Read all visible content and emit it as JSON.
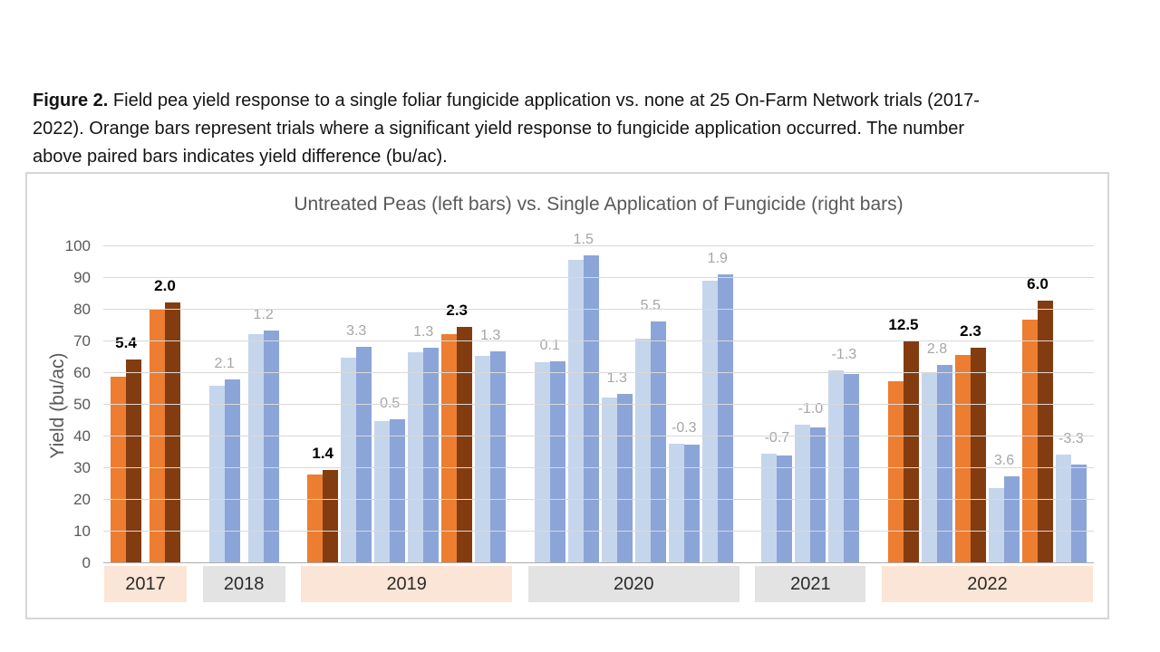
{
  "caption": {
    "prefix": "Figure 2.",
    "lines": [
      " Field pea yield response to a single foliar fungicide application vs. none at 25 On-Farm Network trials (2017-",
      "2022). Orange bars represent trials where a significant yield response to fungicide application occurred. The number",
      "above paired bars indicates yield difference (bu/ac)."
    ]
  },
  "chart_data": {
    "type": "bar",
    "title": "Untreated Peas (left bars) vs. Single Application of Fungicide (right bars)",
    "ylabel": "Yield (bu/ac)",
    "ylim": [
      0,
      100
    ],
    "ytick_step": 10,
    "yticks": [
      0,
      10,
      20,
      30,
      40,
      50,
      60,
      70,
      80,
      90,
      100
    ],
    "grid": true,
    "legend": "none",
    "series_meaning": {
      "left_bar": "Untreated Peas",
      "right_bar": "Single Application of Fungicide"
    },
    "units": "bu/ac",
    "colors": {
      "untreated_significant": "#ED7D31",
      "treated_significant": "#833C10",
      "untreated_nonsignificant": "#C5D5EC",
      "treated_nonsignificant": "#8CA5D8",
      "band_significant": "#FBE5D6",
      "band_nonsignificant": "#E3E3E3",
      "diff_label_significant": "#000000",
      "diff_label_nonsignificant": "#A6A6A6",
      "gridline": "#D9D9D9",
      "axis_line": "#ACACAC",
      "title_text": "#595959",
      "tick_text": "#595959"
    },
    "groups": [
      {
        "year": "2017",
        "significant_band": true,
        "pairs": [
          {
            "untreated": 58.9,
            "treated": 64.3,
            "diff": "5.4",
            "significant": true
          },
          {
            "untreated": 80.3,
            "treated": 82.3,
            "diff": "2.0",
            "significant": true
          }
        ]
      },
      {
        "year": "2018",
        "significant_band": false,
        "pairs": [
          {
            "untreated": 56.0,
            "treated": 58.1,
            "diff": "2.1",
            "significant": false
          },
          {
            "untreated": 72.2,
            "treated": 73.4,
            "diff": "1.2",
            "significant": false
          }
        ]
      },
      {
        "year": "2019",
        "significant_band": true,
        "pairs": [
          {
            "untreated": 27.9,
            "treated": 29.3,
            "diff": "1.4",
            "significant": true
          },
          {
            "untreated": 65.0,
            "treated": 68.3,
            "diff": "3.3",
            "significant": false
          },
          {
            "untreated": 44.8,
            "treated": 45.3,
            "diff": "0.5",
            "significant": false
          },
          {
            "untreated": 66.6,
            "treated": 67.9,
            "diff": "1.3",
            "significant": false
          },
          {
            "untreated": 72.4,
            "treated": 74.7,
            "diff": "2.3",
            "significant": true
          },
          {
            "untreated": 65.5,
            "treated": 66.8,
            "diff": "1.3",
            "significant": false
          }
        ]
      },
      {
        "year": "2020",
        "significant_band": false,
        "pairs": [
          {
            "untreated": 63.5,
            "treated": 63.6,
            "diff": "0.1",
            "significant": false
          },
          {
            "untreated": 95.6,
            "treated": 97.1,
            "diff": "1.5",
            "significant": false
          },
          {
            "untreated": 52.2,
            "treated": 53.5,
            "diff": "1.3",
            "significant": false
          },
          {
            "untreated": 70.8,
            "treated": 76.3,
            "diff": "5.5",
            "significant": false
          },
          {
            "untreated": 37.8,
            "treated": 37.5,
            "diff": "-0.3",
            "significant": false
          },
          {
            "untreated": 89.2,
            "treated": 91.1,
            "diff": "1.9",
            "significant": false
          }
        ]
      },
      {
        "year": "2021",
        "significant_band": false,
        "pairs": [
          {
            "untreated": 34.6,
            "treated": 33.9,
            "diff": "-0.7",
            "significant": false
          },
          {
            "untreated": 43.8,
            "treated": 42.8,
            "diff": "-1.0",
            "significant": false
          },
          {
            "untreated": 61.0,
            "treated": 59.7,
            "diff": "-1.3",
            "significant": false
          }
        ]
      },
      {
        "year": "2022",
        "significant_band": true,
        "pairs": [
          {
            "untreated": 57.5,
            "treated": 70.0,
            "diff": "12.5",
            "significant": true
          },
          {
            "untreated": 59.9,
            "treated": 62.7,
            "diff": "2.8",
            "significant": false
          },
          {
            "untreated": 65.7,
            "treated": 68.0,
            "diff": "2.3",
            "significant": true
          },
          {
            "untreated": 23.8,
            "treated": 27.4,
            "diff": "3.6",
            "significant": false
          },
          {
            "untreated": 77.0,
            "treated": 83.0,
            "diff": "6.0",
            "significant": true
          },
          {
            "untreated": 34.4,
            "treated": 31.1,
            "diff": "-3.3",
            "significant": false
          }
        ]
      }
    ]
  }
}
